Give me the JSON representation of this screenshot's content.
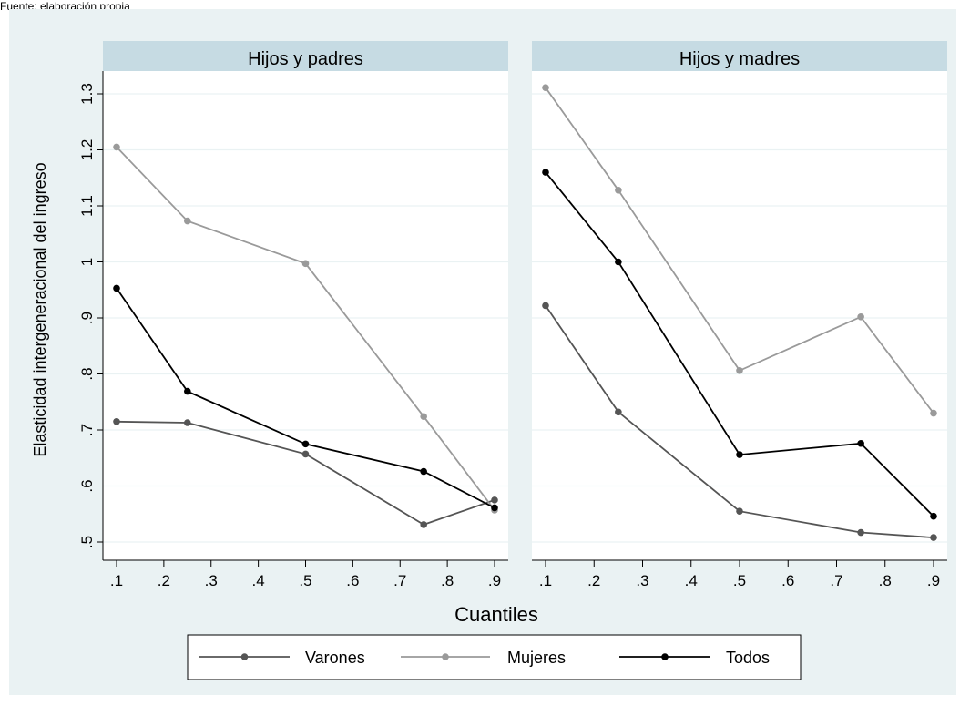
{
  "note": "Fuente: elaboración propia",
  "colors": {
    "background": "#eaf2f3",
    "strip": "#c6dbe3",
    "panel": "#ffffff",
    "grid": "#eaf2f3",
    "varones": "#555555",
    "mujeres": "#9a9a9a",
    "todos": "#000000"
  },
  "chart_data": {
    "type": "line",
    "ylabel": "Elasticidad intergeneracional del ingreso",
    "xlabel": "Cuantiles",
    "xlim": [
      0.1,
      0.9
    ],
    "ylim": [
      0.5,
      1.3
    ],
    "xticks": [
      0.1,
      0.2,
      0.3,
      0.4,
      0.5,
      0.6,
      0.7,
      0.8,
      0.9
    ],
    "xtick_labels": [
      ".1",
      ".2",
      ".3",
      ".4",
      ".5",
      ".6",
      ".7",
      ".8",
      ".9"
    ],
    "yticks": [
      0.5,
      0.6,
      0.7,
      0.8,
      0.9,
      1.0,
      1.1,
      1.2,
      1.3
    ],
    "ytick_labels": [
      ".5",
      ".6",
      ".7",
      ".8",
      ".9",
      "1",
      "1.1",
      "1.2",
      "1.3"
    ],
    "grid": true,
    "legend_position": "bottom",
    "x": [
      0.1,
      0.25,
      0.5,
      0.75,
      0.9
    ],
    "panels": [
      {
        "title": "Hijos y padres",
        "series": [
          {
            "name": "Varones",
            "color_key": "varones",
            "values": [
              0.715,
              0.713,
              0.657,
              0.531,
              0.575
            ]
          },
          {
            "name": "Mujeres",
            "color_key": "mujeres",
            "values": [
              1.205,
              1.073,
              0.997,
              0.724,
              0.557
            ]
          },
          {
            "name": "Todos",
            "color_key": "todos",
            "values": [
              0.953,
              0.769,
              0.675,
              0.626,
              0.561
            ]
          }
        ]
      },
      {
        "title": "Hijos y madres",
        "series": [
          {
            "name": "Varones",
            "color_key": "varones",
            "values": [
              0.922,
              0.732,
              0.555,
              0.517,
              0.508
            ]
          },
          {
            "name": "Mujeres",
            "color_key": "mujeres",
            "values": [
              1.311,
              1.128,
              0.806,
              0.902,
              0.73
            ]
          },
          {
            "name": "Todos",
            "color_key": "todos",
            "values": [
              1.16,
              1.0,
              0.656,
              0.676,
              0.546
            ]
          }
        ]
      }
    ],
    "legend": [
      "Varones",
      "Mujeres",
      "Todos"
    ]
  }
}
